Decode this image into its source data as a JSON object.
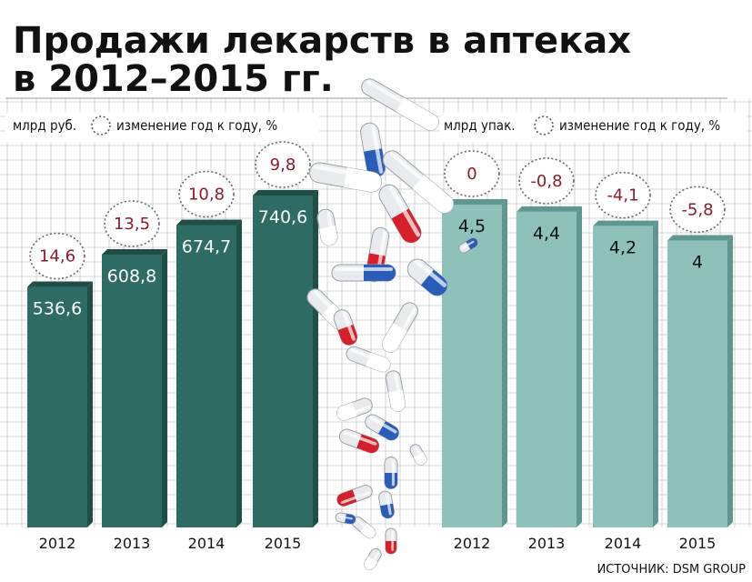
{
  "title_line1": "Продажи лекарств в аптеках",
  "title_line2": "в 2012–2015 гг.",
  "source": "ИСТОЧНИК: DSM GROUP",
  "colors": {
    "left_bar": "#2e6b63",
    "left_bar_dark": "#1f4d47",
    "right_bar": "#8fc1bb",
    "right_bar_dark": "#5f9690",
    "pct_text": "#8b1a2b",
    "grid": "#c8c8c8"
  },
  "chart_data": [
    {
      "type": "bar",
      "unit_label": "млрд руб.",
      "change_label": "изменение год к году, %",
      "categories": [
        "2012",
        "2013",
        "2014",
        "2015"
      ],
      "values": [
        536.6,
        608.8,
        674.7,
        740.6
      ],
      "value_labels": [
        "536,6",
        "608,8",
        "674,7",
        "740,6"
      ],
      "change": [
        14.6,
        13.5,
        10.8,
        9.8
      ],
      "change_labels": [
        "14,6",
        "13,5",
        "10,8",
        "9,8"
      ]
    },
    {
      "type": "bar",
      "unit_label": "млрд упак.",
      "change_label": "изменение год к году, %",
      "categories": [
        "2012",
        "2013",
        "2014",
        "2015"
      ],
      "values": [
        4.5,
        4.4,
        4.2,
        4
      ],
      "value_labels": [
        "4,5",
        "4,4",
        "4,2",
        "4"
      ],
      "change": [
        0,
        -0.8,
        -4.1,
        -5.8
      ],
      "change_labels": [
        "0",
        "-0,8",
        "-4,1",
        "-5,8"
      ]
    }
  ]
}
